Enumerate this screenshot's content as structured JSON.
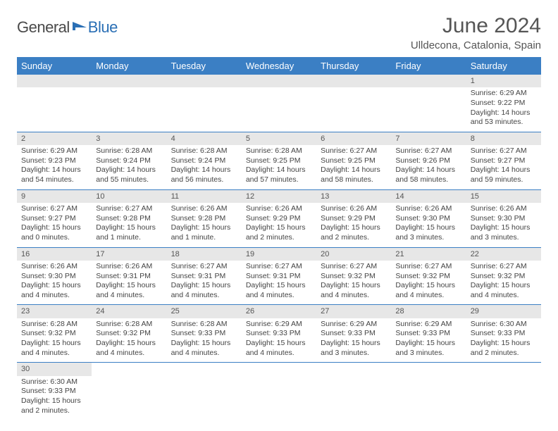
{
  "logo": {
    "text1": "General",
    "text2": "Blue",
    "icon_color": "#2a6fb5"
  },
  "title": "June 2024",
  "location": "Ulldecona, Catalonia, Spain",
  "colors": {
    "header_bg": "#3b7fc4",
    "header_fg": "#ffffff",
    "daynum_bg": "#e7e7e7",
    "row_divider": "#3b7fc4",
    "text": "#444444",
    "page_bg": "#ffffff"
  },
  "typography": {
    "title_fontsize": 30,
    "location_fontsize": 15,
    "dayheader_fontsize": 13,
    "cell_fontsize": 10.5,
    "font_family": "Arial"
  },
  "day_headers": [
    "Sunday",
    "Monday",
    "Tuesday",
    "Wednesday",
    "Thursday",
    "Friday",
    "Saturday"
  ],
  "weeks": [
    [
      null,
      null,
      null,
      null,
      null,
      null,
      {
        "n": "1",
        "sunrise": "Sunrise: 6:29 AM",
        "sunset": "Sunset: 9:22 PM",
        "daylight": "Daylight: 14 hours and 53 minutes."
      }
    ],
    [
      {
        "n": "2",
        "sunrise": "Sunrise: 6:29 AM",
        "sunset": "Sunset: 9:23 PM",
        "daylight": "Daylight: 14 hours and 54 minutes."
      },
      {
        "n": "3",
        "sunrise": "Sunrise: 6:28 AM",
        "sunset": "Sunset: 9:24 PM",
        "daylight": "Daylight: 14 hours and 55 minutes."
      },
      {
        "n": "4",
        "sunrise": "Sunrise: 6:28 AM",
        "sunset": "Sunset: 9:24 PM",
        "daylight": "Daylight: 14 hours and 56 minutes."
      },
      {
        "n": "5",
        "sunrise": "Sunrise: 6:28 AM",
        "sunset": "Sunset: 9:25 PM",
        "daylight": "Daylight: 14 hours and 57 minutes."
      },
      {
        "n": "6",
        "sunrise": "Sunrise: 6:27 AM",
        "sunset": "Sunset: 9:25 PM",
        "daylight": "Daylight: 14 hours and 58 minutes."
      },
      {
        "n": "7",
        "sunrise": "Sunrise: 6:27 AM",
        "sunset": "Sunset: 9:26 PM",
        "daylight": "Daylight: 14 hours and 58 minutes."
      },
      {
        "n": "8",
        "sunrise": "Sunrise: 6:27 AM",
        "sunset": "Sunset: 9:27 PM",
        "daylight": "Daylight: 14 hours and 59 minutes."
      }
    ],
    [
      {
        "n": "9",
        "sunrise": "Sunrise: 6:27 AM",
        "sunset": "Sunset: 9:27 PM",
        "daylight": "Daylight: 15 hours and 0 minutes."
      },
      {
        "n": "10",
        "sunrise": "Sunrise: 6:27 AM",
        "sunset": "Sunset: 9:28 PM",
        "daylight": "Daylight: 15 hours and 1 minute."
      },
      {
        "n": "11",
        "sunrise": "Sunrise: 6:26 AM",
        "sunset": "Sunset: 9:28 PM",
        "daylight": "Daylight: 15 hours and 1 minute."
      },
      {
        "n": "12",
        "sunrise": "Sunrise: 6:26 AM",
        "sunset": "Sunset: 9:29 PM",
        "daylight": "Daylight: 15 hours and 2 minutes."
      },
      {
        "n": "13",
        "sunrise": "Sunrise: 6:26 AM",
        "sunset": "Sunset: 9:29 PM",
        "daylight": "Daylight: 15 hours and 2 minutes."
      },
      {
        "n": "14",
        "sunrise": "Sunrise: 6:26 AM",
        "sunset": "Sunset: 9:30 PM",
        "daylight": "Daylight: 15 hours and 3 minutes."
      },
      {
        "n": "15",
        "sunrise": "Sunrise: 6:26 AM",
        "sunset": "Sunset: 9:30 PM",
        "daylight": "Daylight: 15 hours and 3 minutes."
      }
    ],
    [
      {
        "n": "16",
        "sunrise": "Sunrise: 6:26 AM",
        "sunset": "Sunset: 9:30 PM",
        "daylight": "Daylight: 15 hours and 4 minutes."
      },
      {
        "n": "17",
        "sunrise": "Sunrise: 6:26 AM",
        "sunset": "Sunset: 9:31 PM",
        "daylight": "Daylight: 15 hours and 4 minutes."
      },
      {
        "n": "18",
        "sunrise": "Sunrise: 6:27 AM",
        "sunset": "Sunset: 9:31 PM",
        "daylight": "Daylight: 15 hours and 4 minutes."
      },
      {
        "n": "19",
        "sunrise": "Sunrise: 6:27 AM",
        "sunset": "Sunset: 9:31 PM",
        "daylight": "Daylight: 15 hours and 4 minutes."
      },
      {
        "n": "20",
        "sunrise": "Sunrise: 6:27 AM",
        "sunset": "Sunset: 9:32 PM",
        "daylight": "Daylight: 15 hours and 4 minutes."
      },
      {
        "n": "21",
        "sunrise": "Sunrise: 6:27 AM",
        "sunset": "Sunset: 9:32 PM",
        "daylight": "Daylight: 15 hours and 4 minutes."
      },
      {
        "n": "22",
        "sunrise": "Sunrise: 6:27 AM",
        "sunset": "Sunset: 9:32 PM",
        "daylight": "Daylight: 15 hours and 4 minutes."
      }
    ],
    [
      {
        "n": "23",
        "sunrise": "Sunrise: 6:28 AM",
        "sunset": "Sunset: 9:32 PM",
        "daylight": "Daylight: 15 hours and 4 minutes."
      },
      {
        "n": "24",
        "sunrise": "Sunrise: 6:28 AM",
        "sunset": "Sunset: 9:32 PM",
        "daylight": "Daylight: 15 hours and 4 minutes."
      },
      {
        "n": "25",
        "sunrise": "Sunrise: 6:28 AM",
        "sunset": "Sunset: 9:33 PM",
        "daylight": "Daylight: 15 hours and 4 minutes."
      },
      {
        "n": "26",
        "sunrise": "Sunrise: 6:29 AM",
        "sunset": "Sunset: 9:33 PM",
        "daylight": "Daylight: 15 hours and 4 minutes."
      },
      {
        "n": "27",
        "sunrise": "Sunrise: 6:29 AM",
        "sunset": "Sunset: 9:33 PM",
        "daylight": "Daylight: 15 hours and 3 minutes."
      },
      {
        "n": "28",
        "sunrise": "Sunrise: 6:29 AM",
        "sunset": "Sunset: 9:33 PM",
        "daylight": "Daylight: 15 hours and 3 minutes."
      },
      {
        "n": "29",
        "sunrise": "Sunrise: 6:30 AM",
        "sunset": "Sunset: 9:33 PM",
        "daylight": "Daylight: 15 hours and 2 minutes."
      }
    ],
    [
      {
        "n": "30",
        "sunrise": "Sunrise: 6:30 AM",
        "sunset": "Sunset: 9:33 PM",
        "daylight": "Daylight: 15 hours and 2 minutes."
      },
      null,
      null,
      null,
      null,
      null,
      null
    ]
  ]
}
